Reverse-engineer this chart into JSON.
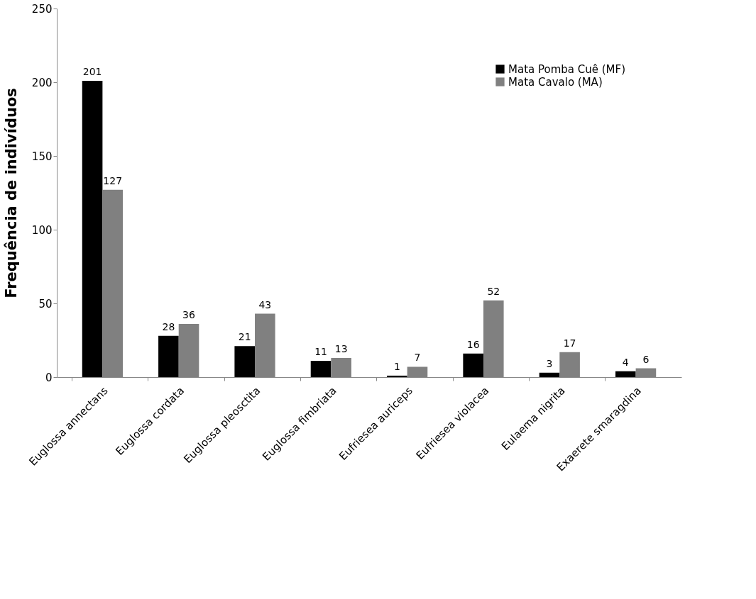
{
  "chart_data": {
    "type": "bar",
    "ylabel": "Frequência de indivíduos",
    "categories": [
      "Euglossa annectans",
      "Euglossa cordata",
      "Euglossa pleosctita",
      "Euglossa fimbriata",
      "Eufriesea auriceps",
      "Eufriesea violacea",
      "Eulaema nigrita",
      "Exaerete smaragdina"
    ],
    "series": [
      {
        "name": "Mata Pomba Cuê (MF)",
        "color": "#000000",
        "values": [
          201,
          28,
          21,
          11,
          1,
          16,
          3,
          4
        ]
      },
      {
        "name": "Mata Cavalo (MA)",
        "color": "#808080",
        "values": [
          127,
          36,
          43,
          13,
          7,
          52,
          17,
          6
        ]
      }
    ],
    "ylim": [
      0,
      250
    ],
    "yticks": [
      0,
      50,
      100,
      150,
      200,
      250
    ],
    "grid": false,
    "legend": "top right",
    "data_labels": true
  }
}
